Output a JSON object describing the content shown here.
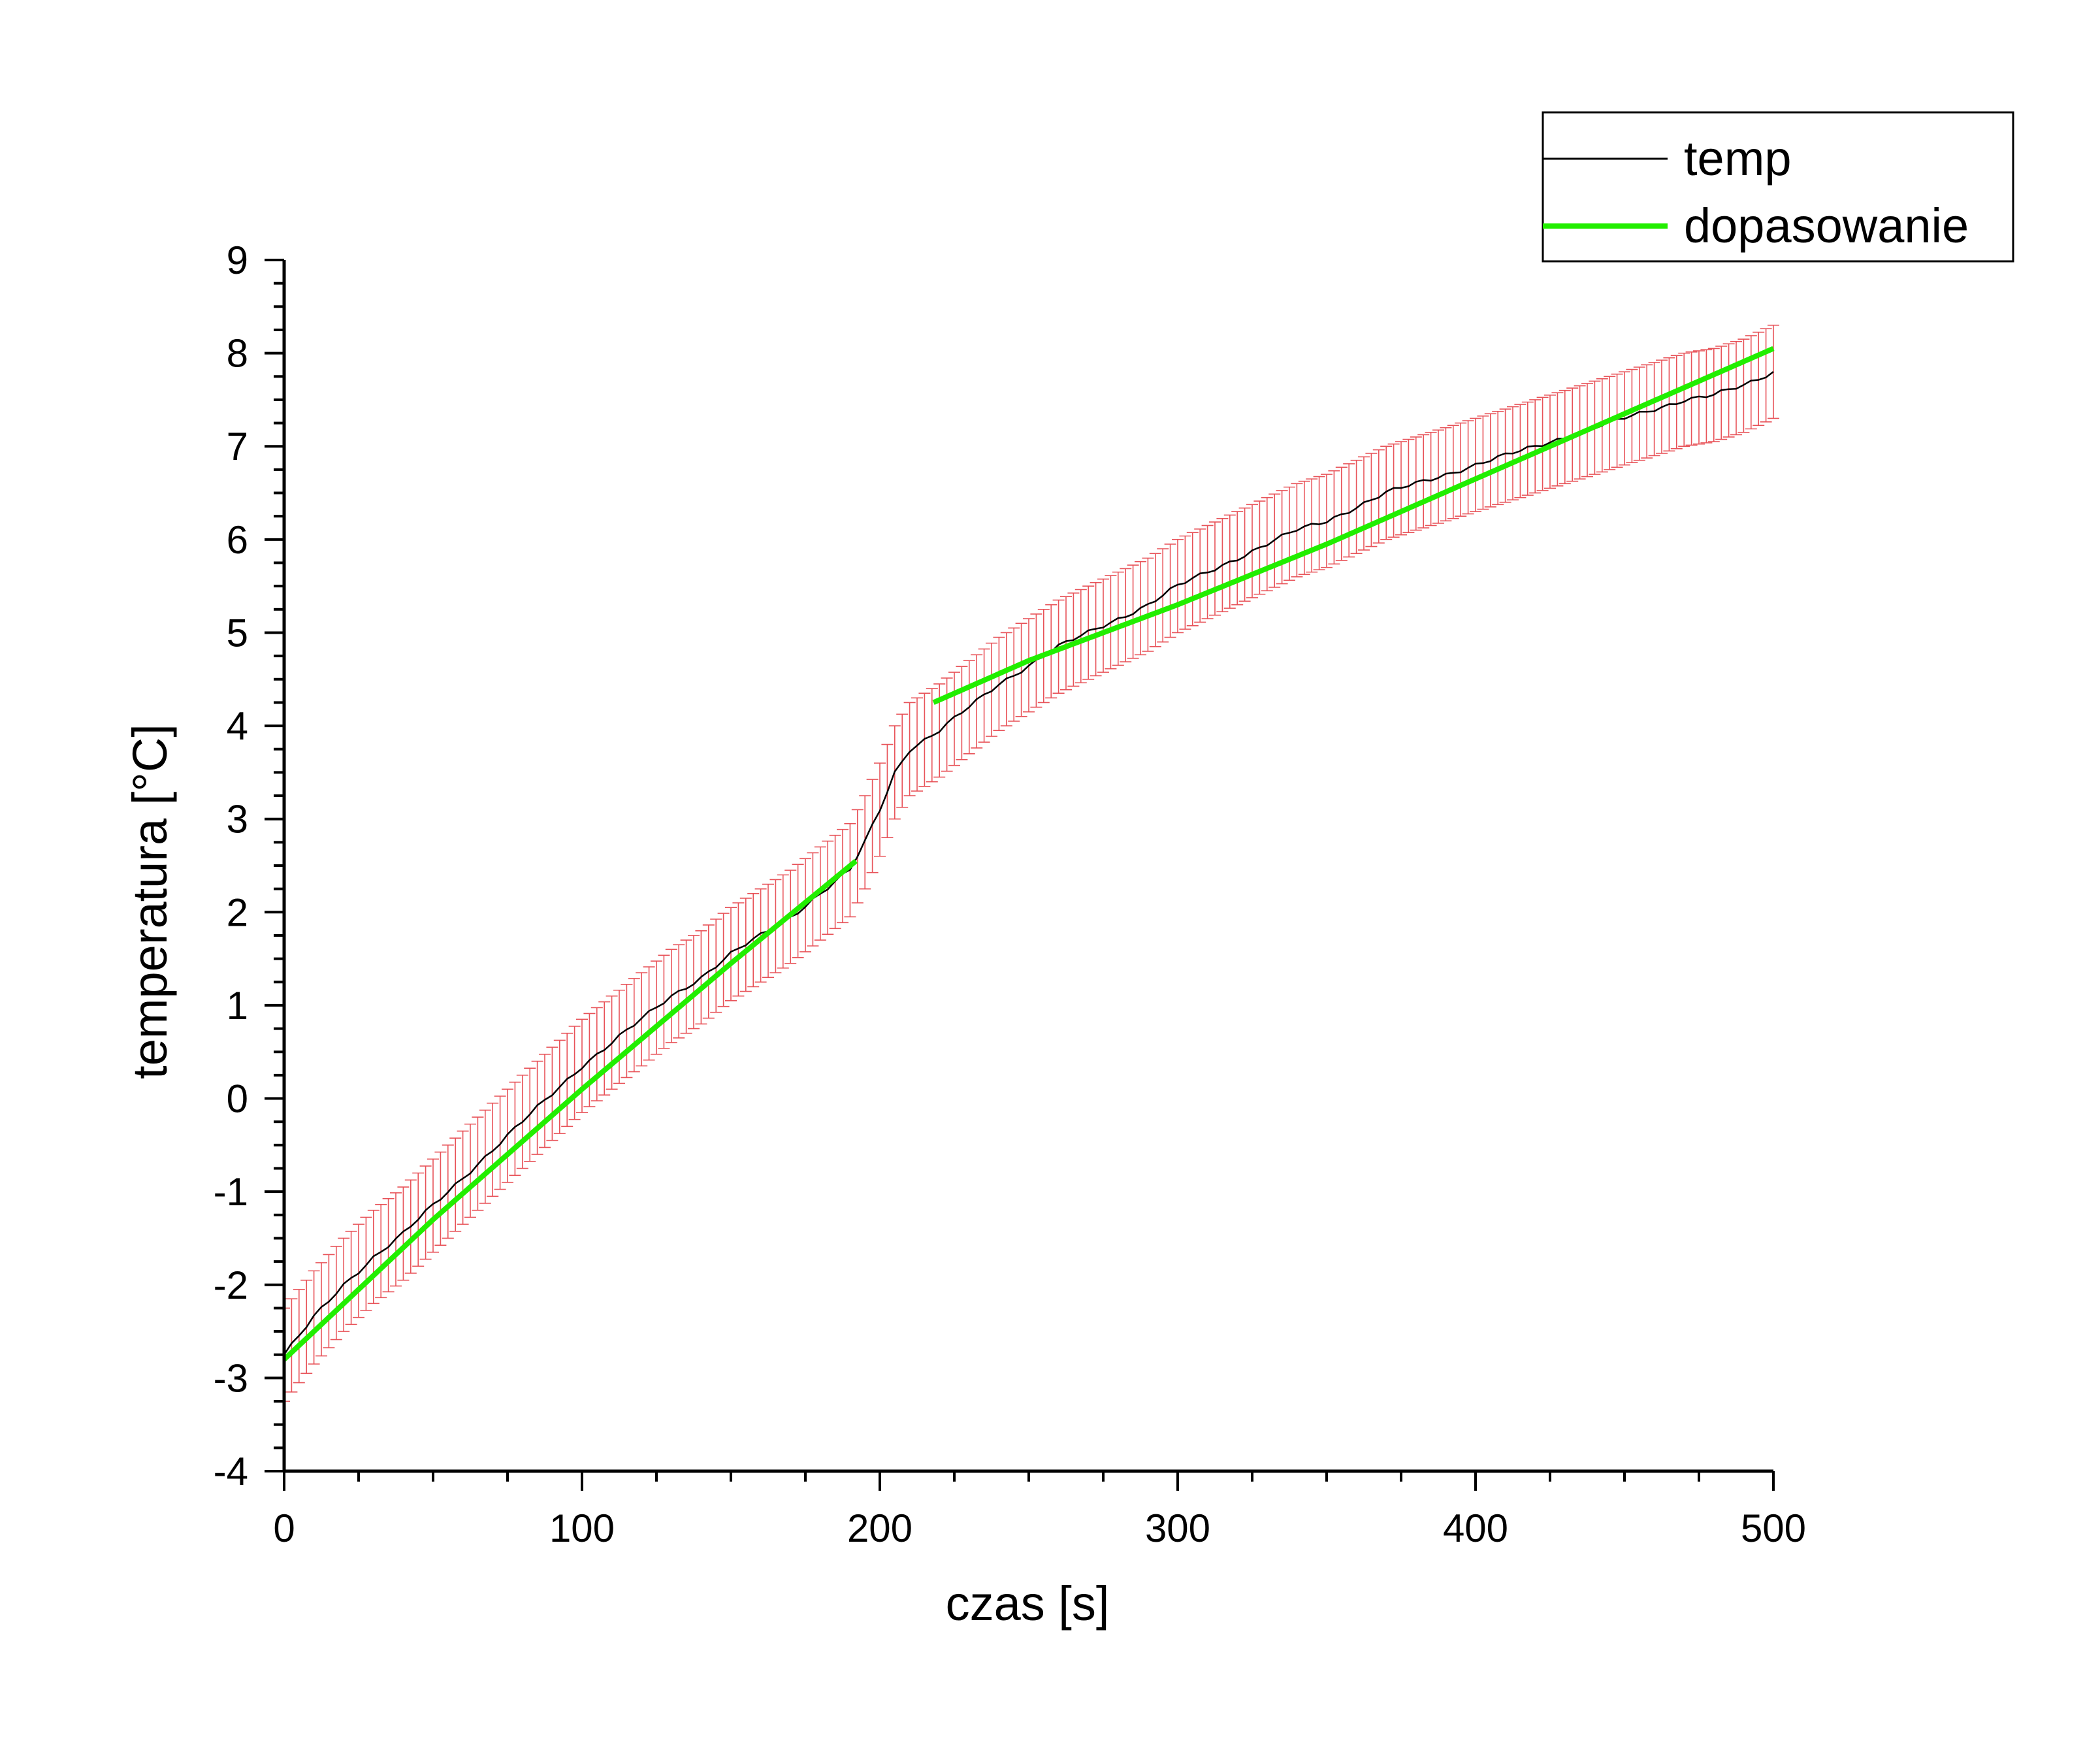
{
  "chart_data": {
    "type": "line",
    "title": "",
    "xlabel": "czas [s]",
    "ylabel": "temperatura [°C]",
    "xlim": [
      0,
      500
    ],
    "ylim": [
      -4,
      9
    ],
    "x_ticks": [
      0,
      100,
      200,
      300,
      400,
      500
    ],
    "x_tick_labels": [
      "0",
      "100",
      "200",
      "300",
      "400",
      "500"
    ],
    "x_minor_step": 25,
    "y_ticks": [
      -4,
      -3,
      -2,
      -1,
      0,
      1,
      2,
      3,
      4,
      5,
      6,
      7,
      8,
      9
    ],
    "y_tick_labels": [
      "-4",
      "-3",
      "-2",
      "-1",
      "0",
      "1",
      "2",
      "3",
      "4",
      "5",
      "6",
      "7",
      "8",
      "9"
    ],
    "y_minor_step": 0.25,
    "grid": false,
    "legend_position": "top-right",
    "error_bar": 0.5,
    "series": [
      {
        "name": "temp",
        "color": "#000000",
        "error_bar_color": "#e8545a",
        "x": [
          0,
          10,
          20,
          30,
          40,
          50,
          60,
          70,
          80,
          90,
          100,
          110,
          120,
          130,
          140,
          150,
          160,
          170,
          180,
          190,
          195,
          200,
          205,
          210,
          220,
          230,
          240,
          250,
          260,
          270,
          280,
          290,
          300,
          310,
          320,
          330,
          340,
          350,
          360,
          370,
          380,
          390,
          400,
          410,
          420,
          430,
          440,
          450,
          460,
          470,
          480,
          490,
          500
        ],
        "y": [
          -2.75,
          -2.35,
          -2.0,
          -1.7,
          -1.45,
          -1.15,
          -0.85,
          -0.55,
          -0.25,
          0.05,
          0.35,
          0.6,
          0.85,
          1.1,
          1.3,
          1.55,
          1.75,
          1.95,
          2.2,
          2.45,
          2.75,
          3.1,
          3.5,
          3.75,
          3.95,
          4.2,
          4.45,
          4.65,
          4.85,
          5.0,
          5.15,
          5.3,
          5.5,
          5.65,
          5.8,
          5.95,
          6.1,
          6.2,
          6.35,
          6.5,
          6.6,
          6.7,
          6.8,
          6.9,
          7.0,
          7.1,
          7.2,
          7.3,
          7.4,
          7.5,
          7.55,
          7.65,
          7.8
        ]
      },
      {
        "name": "dopasowanie",
        "color": "#22ee00",
        "segments": [
          {
            "x": [
              0,
              50,
              100,
              150,
              192
            ],
            "y": [
              -2.8,
              -1.3,
              0.1,
              1.45,
              2.55
            ]
          },
          {
            "x": [
              218,
              250,
              300,
              350,
              400,
              450,
              500
            ],
            "y": [
              4.25,
              4.7,
              5.3,
              5.95,
              6.65,
              7.35,
              8.05
            ]
          }
        ]
      }
    ]
  }
}
